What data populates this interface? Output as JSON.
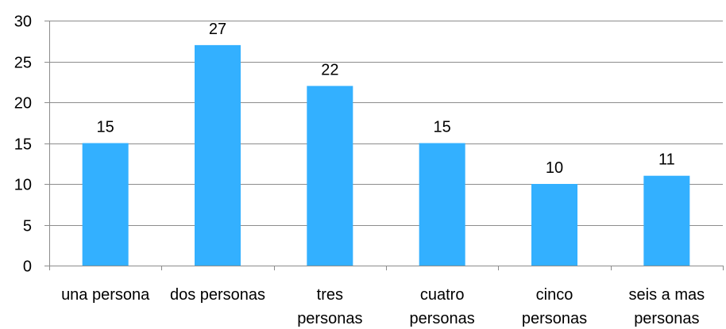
{
  "chart_data": {
    "type": "bar",
    "title": "",
    "xlabel": "",
    "ylabel": "",
    "categories": [
      [
        "una persona"
      ],
      [
        "dos personas"
      ],
      [
        "tres",
        "personas"
      ],
      [
        "cuatro",
        "personas"
      ],
      [
        "cinco",
        "personas"
      ],
      [
        "seis a mas",
        "personas"
      ]
    ],
    "values": [
      15,
      27,
      22,
      15,
      10,
      11
    ],
    "data_labels": [
      "15",
      "27",
      "22",
      "15",
      "10",
      "11"
    ],
    "ylim": [
      0,
      30
    ],
    "yticks": [
      0,
      5,
      10,
      15,
      20,
      25,
      30
    ],
    "ytick_labels": [
      "0",
      "5",
      "10",
      "15",
      "20",
      "25",
      "30"
    ],
    "grid": true,
    "legend": "none",
    "colors": {
      "bar": "#33b0ff",
      "grid": "#8c8c8c",
      "axis": "#8c8c8c",
      "text": "#000000"
    }
  }
}
